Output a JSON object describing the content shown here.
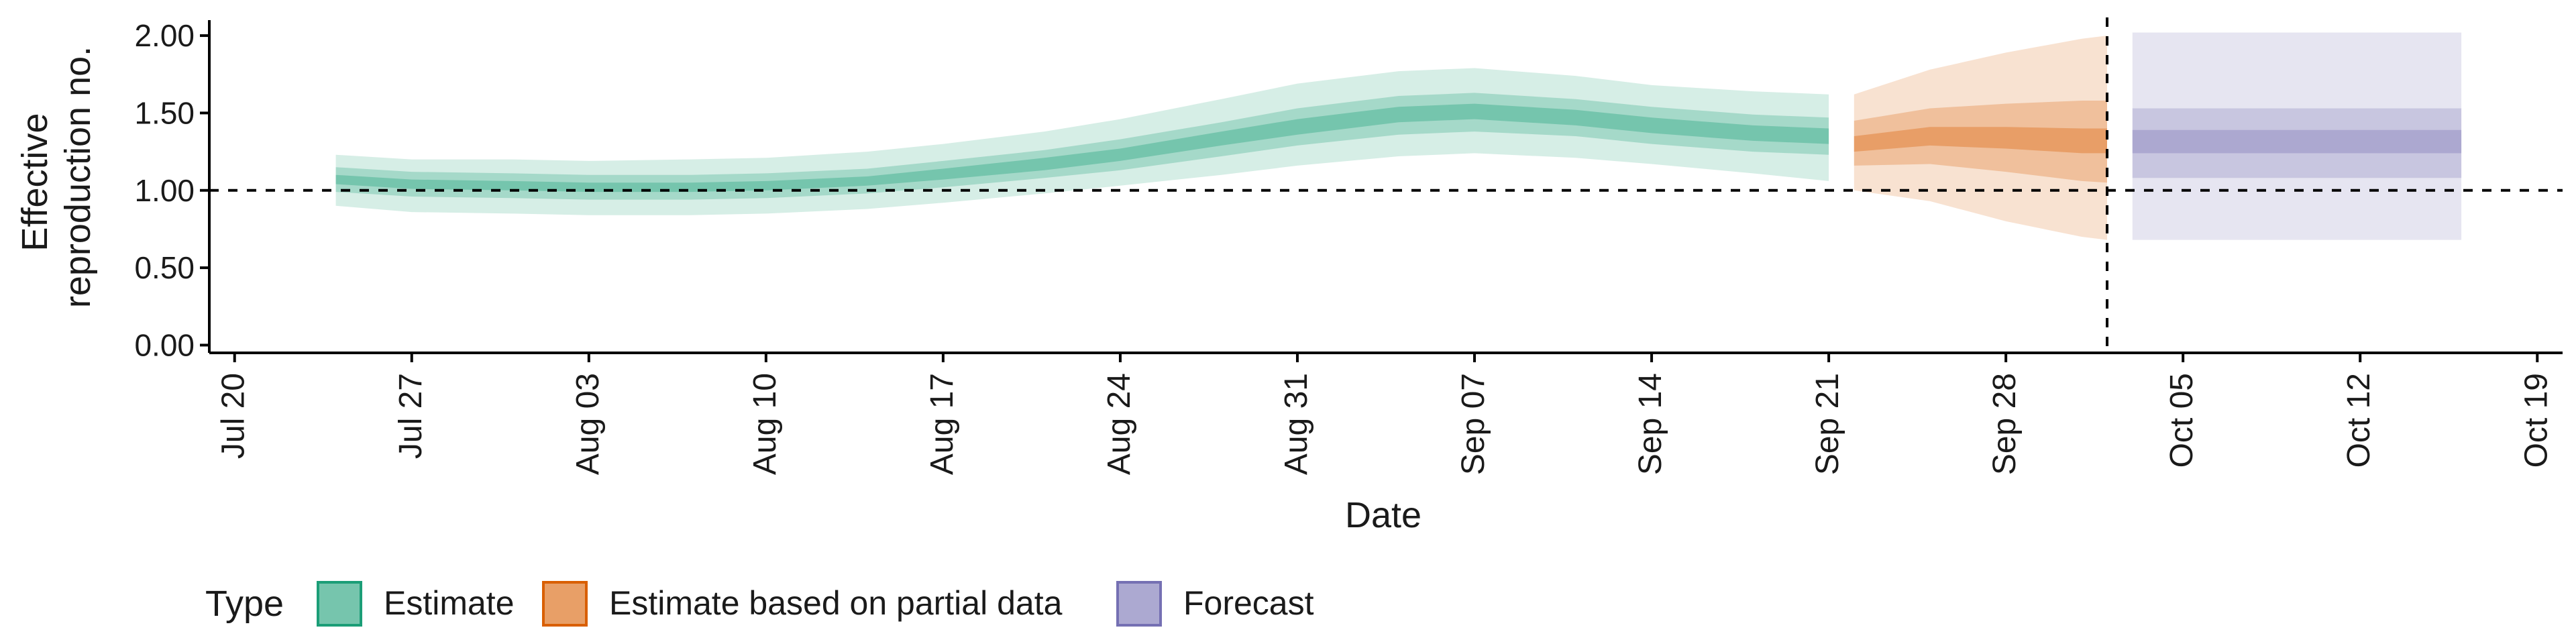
{
  "chart_data": {
    "type": "area",
    "xlabel": "Date",
    "ylabel_lines": [
      "Effective",
      "reproduction no."
    ],
    "xlim": [
      "2020-07-19",
      "2020-10-20"
    ],
    "ylim": [
      -0.05,
      2.1
    ],
    "x_ticks": [
      {
        "date": "2020-07-20",
        "label": "Jul 20"
      },
      {
        "date": "2020-07-27",
        "label": "Jul 27"
      },
      {
        "date": "2020-08-03",
        "label": "Aug 03"
      },
      {
        "date": "2020-08-10",
        "label": "Aug 10"
      },
      {
        "date": "2020-08-17",
        "label": "Aug 17"
      },
      {
        "date": "2020-08-24",
        "label": "Aug 24"
      },
      {
        "date": "2020-08-31",
        "label": "Aug 31"
      },
      {
        "date": "2020-09-07",
        "label": "Sep 07"
      },
      {
        "date": "2020-09-14",
        "label": "Sep 14"
      },
      {
        "date": "2020-09-21",
        "label": "Sep 21"
      },
      {
        "date": "2020-09-28",
        "label": "Sep 28"
      },
      {
        "date": "2020-10-05",
        "label": "Oct 05"
      },
      {
        "date": "2020-10-12",
        "label": "Oct 12"
      },
      {
        "date": "2020-10-19",
        "label": "Oct 19"
      }
    ],
    "y_ticks": [
      {
        "value": 0,
        "label": "0.00"
      },
      {
        "value": 0.5,
        "label": "0.50"
      },
      {
        "value": 1,
        "label": "1.00"
      },
      {
        "value": 1.5,
        "label": "1.50"
      },
      {
        "value": 2,
        "label": "2.00"
      }
    ],
    "reference_hline": 1.0,
    "reference_vline": "2020-10-02",
    "legend": {
      "title": "Type",
      "placement": "bottom-left",
      "entries": [
        "Estimate",
        "Estimate based on partial data",
        "Forecast"
      ]
    },
    "series": [
      {
        "type_label": "Estimate",
        "fill_color": "#1b9e77",
        "edge_color": "#1b9e77",
        "points": [
          {
            "date": "2020-07-24",
            "median": 1.07,
            "lower_20": 1.04,
            "upper_20": 1.1,
            "lower_50": 0.99,
            "upper_50": 1.15,
            "lower_90": 0.9,
            "upper_90": 1.23
          },
          {
            "date": "2020-07-27",
            "median": 1.04,
            "lower_20": 1.01,
            "upper_20": 1.07,
            "lower_50": 0.96,
            "upper_50": 1.12,
            "lower_90": 0.86,
            "upper_90": 1.2
          },
          {
            "date": "2020-07-31",
            "median": 1.03,
            "lower_20": 1.0,
            "upper_20": 1.06,
            "lower_50": 0.95,
            "upper_50": 1.11,
            "lower_90": 0.85,
            "upper_90": 1.2
          },
          {
            "date": "2020-08-03",
            "median": 1.02,
            "lower_20": 0.99,
            "upper_20": 1.05,
            "lower_50": 0.94,
            "upper_50": 1.1,
            "lower_90": 0.84,
            "upper_90": 1.19
          },
          {
            "date": "2020-08-07",
            "median": 1.02,
            "lower_20": 0.99,
            "upper_20": 1.05,
            "lower_50": 0.94,
            "upper_50": 1.1,
            "lower_90": 0.84,
            "upper_90": 1.2
          },
          {
            "date": "2020-08-10",
            "median": 1.03,
            "lower_20": 1.0,
            "upper_20": 1.06,
            "lower_50": 0.95,
            "upper_50": 1.11,
            "lower_90": 0.85,
            "upper_90": 1.21
          },
          {
            "date": "2020-08-14",
            "median": 1.06,
            "lower_20": 1.03,
            "upper_20": 1.09,
            "lower_50": 0.98,
            "upper_50": 1.14,
            "lower_90": 0.88,
            "upper_90": 1.25
          },
          {
            "date": "2020-08-17",
            "median": 1.1,
            "lower_20": 1.07,
            "upper_20": 1.14,
            "lower_50": 1.02,
            "upper_50": 1.19,
            "lower_90": 0.92,
            "upper_90": 1.3
          },
          {
            "date": "2020-08-21",
            "median": 1.17,
            "lower_20": 1.13,
            "upper_20": 1.21,
            "lower_50": 1.08,
            "upper_50": 1.26,
            "lower_90": 0.98,
            "upper_90": 1.38
          },
          {
            "date": "2020-08-24",
            "median": 1.23,
            "lower_20": 1.19,
            "upper_20": 1.27,
            "lower_50": 1.13,
            "upper_50": 1.33,
            "lower_90": 1.03,
            "upper_90": 1.46
          },
          {
            "date": "2020-08-28",
            "median": 1.33,
            "lower_20": 1.29,
            "upper_20": 1.38,
            "lower_50": 1.22,
            "upper_50": 1.44,
            "lower_90": 1.1,
            "upper_90": 1.59
          },
          {
            "date": "2020-08-31",
            "median": 1.41,
            "lower_20": 1.36,
            "upper_20": 1.46,
            "lower_50": 1.29,
            "upper_50": 1.53,
            "lower_90": 1.16,
            "upper_90": 1.69
          },
          {
            "date": "2020-09-04",
            "median": 1.49,
            "lower_20": 1.44,
            "upper_20": 1.54,
            "lower_50": 1.36,
            "upper_50": 1.61,
            "lower_90": 1.22,
            "upper_90": 1.77
          },
          {
            "date": "2020-09-07",
            "median": 1.51,
            "lower_20": 1.46,
            "upper_20": 1.56,
            "lower_50": 1.38,
            "upper_50": 1.63,
            "lower_90": 1.24,
            "upper_90": 1.79
          },
          {
            "date": "2020-09-11",
            "median": 1.47,
            "lower_20": 1.42,
            "upper_20": 1.52,
            "lower_50": 1.35,
            "upper_50": 1.59,
            "lower_90": 1.21,
            "upper_90": 1.74
          },
          {
            "date": "2020-09-14",
            "median": 1.42,
            "lower_20": 1.37,
            "upper_20": 1.47,
            "lower_50": 1.3,
            "upper_50": 1.54,
            "lower_90": 1.17,
            "upper_90": 1.68
          },
          {
            "date": "2020-09-18",
            "median": 1.37,
            "lower_20": 1.32,
            "upper_20": 1.42,
            "lower_50": 1.25,
            "upper_50": 1.49,
            "lower_90": 1.11,
            "upper_90": 1.64
          },
          {
            "date": "2020-09-21",
            "median": 1.35,
            "lower_20": 1.3,
            "upper_20": 1.4,
            "lower_50": 1.23,
            "upper_50": 1.47,
            "lower_90": 1.06,
            "upper_90": 1.62
          }
        ]
      },
      {
        "type_label": "Estimate based on partial data",
        "fill_color": "#d95f02",
        "edge_color": "#d95f02",
        "points": [
          {
            "date": "2020-09-22",
            "median": 1.3,
            "lower_20": 1.25,
            "upper_20": 1.35,
            "lower_50": 1.16,
            "upper_50": 1.45,
            "lower_90": 1.0,
            "upper_90": 1.62
          },
          {
            "date": "2020-09-25",
            "median": 1.35,
            "lower_20": 1.29,
            "upper_20": 1.41,
            "lower_50": 1.17,
            "upper_50": 1.53,
            "lower_90": 0.93,
            "upper_90": 1.78
          },
          {
            "date": "2020-09-28",
            "median": 1.34,
            "lower_20": 1.27,
            "upper_20": 1.41,
            "lower_50": 1.12,
            "upper_50": 1.56,
            "lower_90": 0.8,
            "upper_90": 1.89
          },
          {
            "date": "2020-10-01",
            "median": 1.32,
            "lower_20": 1.24,
            "upper_20": 1.4,
            "lower_50": 1.06,
            "upper_50": 1.58,
            "lower_90": 0.7,
            "upper_90": 1.98
          },
          {
            "date": "2020-10-02",
            "median": 1.32,
            "lower_20": 1.24,
            "upper_20": 1.4,
            "lower_50": 1.05,
            "upper_50": 1.58,
            "lower_90": 0.68,
            "upper_90": 2.0
          }
        ]
      },
      {
        "type_label": "Forecast",
        "fill_color": "#7570b3",
        "edge_color": "#7570b3",
        "points": [
          {
            "date": "2020-10-03",
            "median": 1.31,
            "lower_20": 1.24,
            "upper_20": 1.39,
            "lower_50": 1.08,
            "upper_50": 1.53,
            "lower_90": 0.68,
            "upper_90": 2.02
          },
          {
            "date": "2020-10-16",
            "median": 1.31,
            "lower_20": 1.24,
            "upper_20": 1.39,
            "lower_50": 1.08,
            "upper_50": 1.53,
            "lower_90": 0.68,
            "upper_90": 2.02
          }
        ]
      }
    ]
  }
}
